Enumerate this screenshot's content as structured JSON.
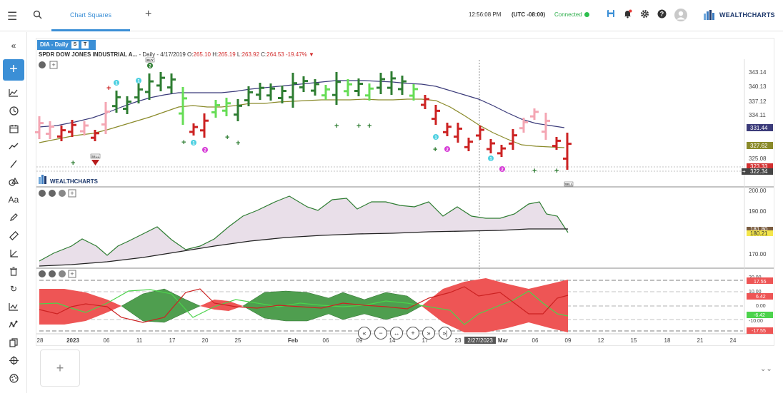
{
  "topbar": {
    "tab_label": "Chart Squares",
    "time": "12:56:08 PM",
    "timezone": "(UTC -08:00)",
    "connection_status": "Connected",
    "logo_text": "WEALTHCHARTS",
    "connected_color": "#2dae4b",
    "accent_color": "#3b8fd6"
  },
  "chart_header": {
    "symbol_tab": "DIA - Daily",
    "btn_s": "S",
    "btn_t": "T",
    "title": "SPDR DOW JONES INDUSTRIAL A...",
    "meta": " - Daily - 4/17/2019 O:",
    "open": "265.10",
    "high_label": " H:",
    "high": "265.19",
    "low_label": " L:",
    "low": "263.92",
    "close_label": " C:",
    "close": "264.53",
    "change": "-19.47%"
  },
  "price_axis": [
    "343.14",
    "340.13",
    "337.12",
    "334.11",
    "331.44",
    "327.62",
    "325.08",
    "323.33",
    "322.34"
  ],
  "osc_axis": [
    "200.00",
    "190.00",
    "181.80",
    "180.21",
    "170.00"
  ],
  "third_axis": [
    "20.00",
    "17.55",
    "10.00",
    "6.42",
    "0.00",
    "-6.42",
    "-10.00",
    "-17.55"
  ],
  "x_axis": [
    "28",
    "2023",
    "06",
    "11",
    "17",
    "20",
    "25",
    "Feb",
    "06",
    "09",
    "14",
    "17",
    "23",
    "2/27/2023",
    "Mar",
    "06",
    "09",
    "12",
    "15",
    "18",
    "21",
    "24"
  ],
  "watermark_logo": "WEALTHCHARTS",
  "signals": {
    "buy": "BUY",
    "sell": "SELL",
    "num1": "1",
    "num2": "2"
  },
  "controls": [
    "«",
    "−",
    "↔",
    "+",
    "»",
    "»|"
  ],
  "bottom_tile_label": "+",
  "icons": [
    "menu-icon",
    "search-icon",
    "plus-icon",
    "save-icon",
    "bell-icon",
    "gear-icon",
    "help-icon",
    "avatar-icon",
    "collapse-icon",
    "line-chart-icon",
    "clock-icon",
    "calendar-icon",
    "trend-icon",
    "pencil-icon",
    "text-icon",
    "ruler-icon",
    "trash-icon",
    "refresh-icon",
    "indicator-icon",
    "pattern-icon",
    "copy-icon",
    "crosshair-icon",
    "palette-icon"
  ]
}
